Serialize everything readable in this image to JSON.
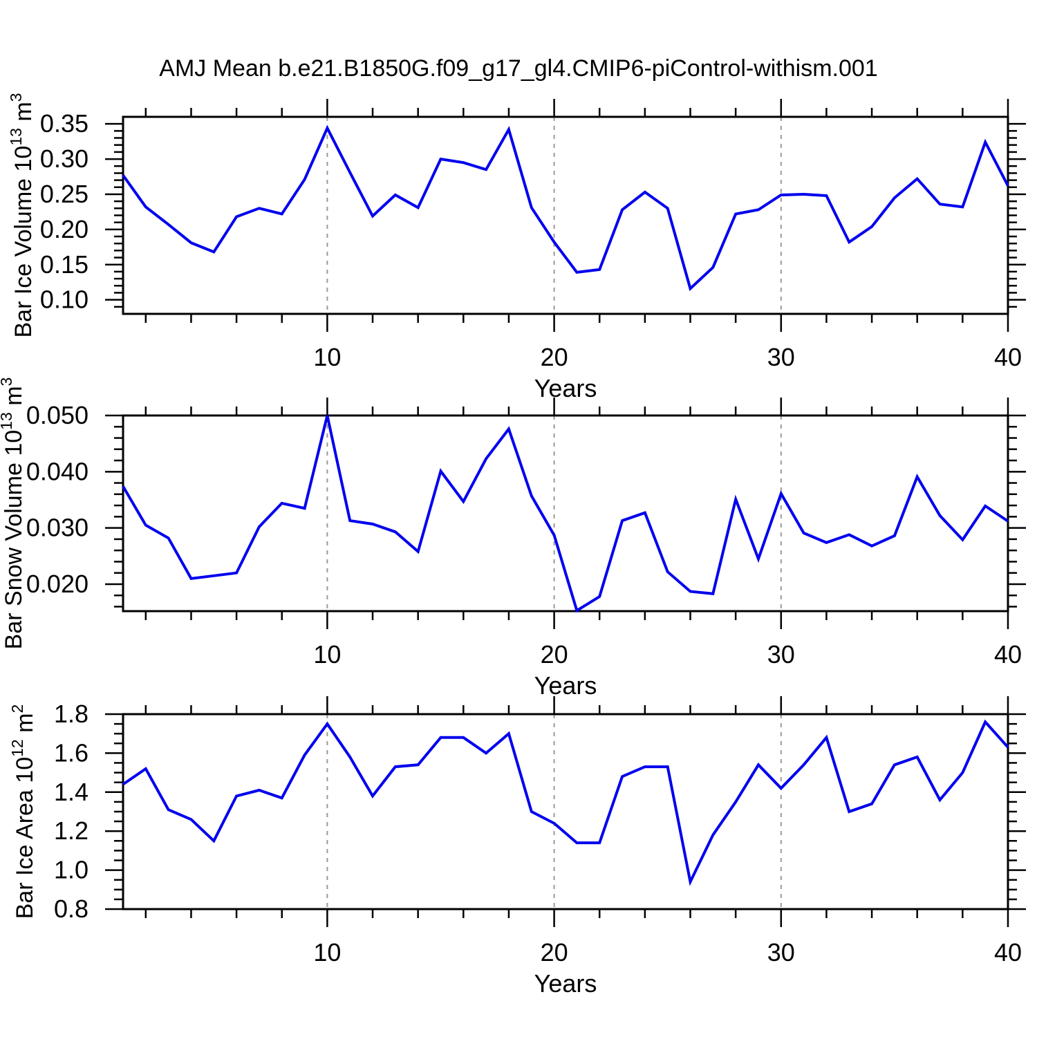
{
  "title": "AMJ Mean b.e21.B1850G.f09_g17_gl4.CMIP6-piControl-withism.001",
  "colors": {
    "line": "#0000ee",
    "gridline": "#9a9a9a",
    "axis": "#000000",
    "text": "#000000",
    "background": "#ffffff"
  },
  "x_axis": {
    "label": "Years",
    "major_ticks": [
      10,
      20,
      30,
      40
    ],
    "minor_step": 2,
    "gridline_years": [
      10,
      20,
      30
    ],
    "range": [
      1,
      40
    ],
    "years": [
      1,
      2,
      3,
      4,
      5,
      6,
      7,
      8,
      9,
      10,
      11,
      12,
      13,
      14,
      15,
      16,
      17,
      18,
      19,
      20,
      21,
      22,
      23,
      24,
      25,
      26,
      27,
      28,
      29,
      30,
      31,
      32,
      33,
      34,
      35,
      36,
      37,
      38,
      39,
      40
    ]
  },
  "chart_data": [
    {
      "type": "line",
      "name": "ice-volume",
      "ylabel_text": "Bar Ice Volume 10^13 m^3",
      "ylabel_parts": [
        {
          "t": "Bar Ice Volume 10"
        },
        {
          "sup": "13"
        },
        {
          "t": " m"
        },
        {
          "sup": "3"
        }
      ],
      "xlabel": "Years",
      "ylim": [
        0.08,
        0.36
      ],
      "yticks": [
        0.35,
        0.3,
        0.25,
        0.2,
        0.15,
        0.1
      ],
      "ytick_labels": [
        "0.35",
        "0.30",
        "0.25",
        "0.20",
        "0.15",
        "0.10"
      ],
      "yminor_step": 0.01,
      "values": [
        0.277,
        0.232,
        0.207,
        0.181,
        0.168,
        0.218,
        0.23,
        0.222,
        0.271,
        0.344,
        0.281,
        0.219,
        0.249,
        0.231,
        0.3,
        0.295,
        0.285,
        0.342,
        0.231,
        0.182,
        0.139,
        0.143,
        0.228,
        0.253,
        0.23,
        0.116,
        0.146,
        0.222,
        0.228,
        0.249,
        0.25,
        0.248,
        0.182,
        0.204,
        0.245,
        0.272,
        0.236,
        0.232,
        0.324,
        0.262
      ]
    },
    {
      "type": "line",
      "name": "snow-volume",
      "ylabel_text": "Bar Snow Volume 10^13 m^3",
      "ylabel_parts": [
        {
          "t": "Bar Snow Volume 10"
        },
        {
          "sup": "13"
        },
        {
          "t": " m"
        },
        {
          "sup": "3"
        }
      ],
      "xlabel": "Years",
      "ylim": [
        0.0152,
        0.05
      ],
      "yticks": [
        0.05,
        0.04,
        0.03,
        0.02
      ],
      "ytick_labels": [
        "0.050",
        "0.040",
        "0.030",
        "0.020"
      ],
      "yminor_step": 0.002,
      "values": [
        0.0374,
        0.0305,
        0.0282,
        0.021,
        0.0215,
        0.022,
        0.0302,
        0.0344,
        0.0335,
        0.05,
        0.0313,
        0.0307,
        0.0293,
        0.0258,
        0.0401,
        0.0347,
        0.0423,
        0.0476,
        0.0357,
        0.0287,
        0.0153,
        0.0178,
        0.0313,
        0.0327,
        0.0222,
        0.0187,
        0.0183,
        0.0351,
        0.0245,
        0.0361,
        0.0291,
        0.0274,
        0.0288,
        0.0268,
        0.0286,
        0.0391,
        0.0322,
        0.0279,
        0.0339,
        0.0312
      ]
    },
    {
      "type": "line",
      "name": "ice-area",
      "ylabel_text": "Bar Ice Area 10^12 m^2",
      "ylabel_parts": [
        {
          "t": "Bar Ice Area 10"
        },
        {
          "sup": "12"
        },
        {
          "t": " m"
        },
        {
          "sup": "2"
        }
      ],
      "xlabel": "Years",
      "ylim": [
        0.8,
        1.8
      ],
      "yticks": [
        1.8,
        1.6,
        1.4,
        1.2,
        1.0,
        0.8
      ],
      "ytick_labels": [
        "1.8",
        "1.6",
        "1.4",
        "1.2",
        "1.0",
        "0.8"
      ],
      "yminor_step": 0.05,
      "values": [
        1.44,
        1.52,
        1.31,
        1.26,
        1.15,
        1.38,
        1.41,
        1.37,
        1.59,
        1.75,
        1.58,
        1.38,
        1.53,
        1.54,
        1.68,
        1.68,
        1.6,
        1.7,
        1.3,
        1.24,
        1.14,
        1.14,
        1.48,
        1.53,
        1.53,
        0.94,
        1.18,
        1.35,
        1.54,
        1.42,
        1.54,
        1.68,
        1.3,
        1.34,
        1.54,
        1.58,
        1.36,
        1.5,
        1.76,
        1.63
      ]
    }
  ]
}
